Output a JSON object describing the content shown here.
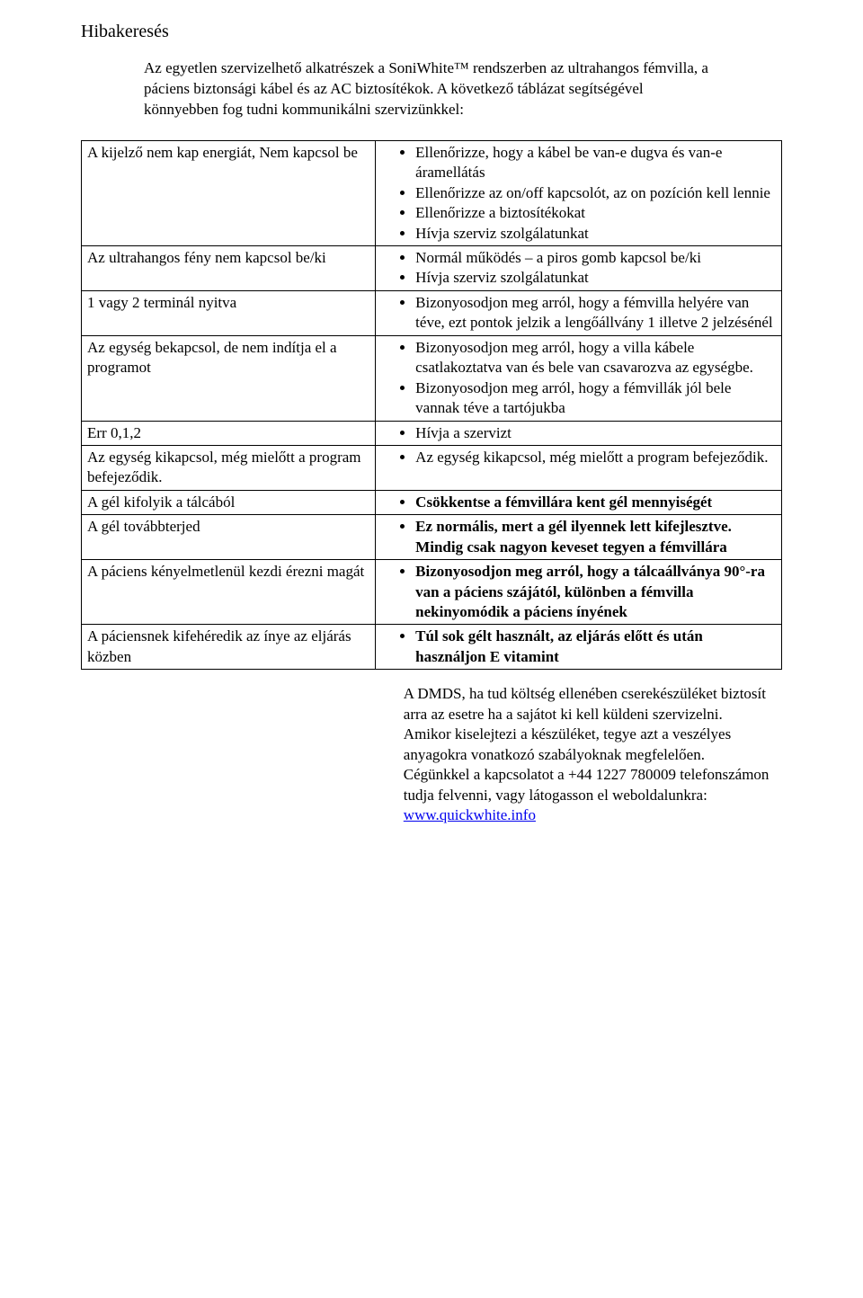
{
  "title": "Hibakeresés",
  "intro": {
    "p1": "Az egyetlen szervizelhető alkatrészek a SoniWhite™ rendszerben az ultrahangos fémvilla, a páciens biztonsági kábel és az AC biztosítékok. A következő táblázat segítségével könnyebben fog tudni kommunikálni szervizünkkel:"
  },
  "rows": [
    {
      "left": "A kijelző nem kap energiát,\nNem kapcsol be",
      "bullets": [
        "Ellenőrizze, hogy a kábel be van-e dugva és van-e áramellátás",
        "Ellenőrizze az on/off kapcsolót, az on pozíción kell lennie",
        "Ellenőrizze a biztosítékokat",
        "Hívja szerviz szolgálatunkat"
      ],
      "bold": false
    },
    {
      "left": "Az ultrahangos fény nem kapcsol be/ki",
      "bullets": [
        "Normál működés – a piros gomb kapcsol be/ki",
        "Hívja szerviz szolgálatunkat"
      ],
      "bold": false
    },
    {
      "left": "1 vagy 2 terminál nyitva",
      "bullets": [
        "Bizonyosodjon meg arról, hogy a fémvilla helyére van téve, ezt pontok jelzik a lengőállvány 1 illetve 2 jelzésénél"
      ],
      "bold": false
    },
    {
      "left": "Az egység bekapcsol, de nem indítja el a\nprogramot",
      "bullets": [
        "Bizonyosodjon meg arról, hogy a villa kábele csatlakoztatva van és bele van csavarozva az egységbe.",
        "Bizonyosodjon meg arról, hogy a fémvillák jól bele vannak téve a tartójukba"
      ],
      "bold": false
    },
    {
      "left": "Err 0,1,2",
      "bullets": [
        "Hívja a szervizt"
      ],
      "bold": false
    },
    {
      "left": "Az egység kikapcsol, még mielőtt a program befejeződik.",
      "bullets": [
        "Az egység kikapcsol, még mielőtt a program befejeződik."
      ],
      "bold": false
    },
    {
      "left": "A gél kifolyik a tálcából",
      "bullets": [
        "Csökkentse a fémvillára kent gél mennyiségét"
      ],
      "bold": true
    },
    {
      "left": "A gél továbbterjed",
      "bullets": [
        "Ez normális, mert a gél ilyennek lett kifejlesztve. Mindig csak nagyon keveset tegyen a fémvillára"
      ],
      "bold": true
    },
    {
      "left": "A páciens kényelmetlenül kezdi érezni magát",
      "bullets": [
        "Bizonyosodjon meg arról, hogy a tálcaállványa 90°-ra van a páciens szájától, különben a fémvilla nekinyomódik a páciens ínyének"
      ],
      "bold": true
    },
    {
      "left": "A páciensnek kifehéredik az ínye az eljárás közben",
      "bullets": [
        "Túl sok gélt használt, az eljárás előtt és után használjon E vitamint"
      ],
      "bold": true
    }
  ],
  "footer": {
    "p1": "A DMDS, ha tud költség ellenében cserekészüléket biztosít arra az esetre ha a sajátot ki kell küldeni szervizelni.",
    "p2": "Amikor kiselejtezi a készüléket, tegye azt a veszélyes anyagokra vonatkozó szabályoknak megfelelően.",
    "p3_prefix": "Cégünkkel a kapcsolatot a +44 1227 780009 telefonszámon tudja felvenni, vagy látogasson el weboldalunkra: ",
    "link_text": "www.quickwhite.info",
    "link_href": "http://www.quickwhite.info"
  }
}
